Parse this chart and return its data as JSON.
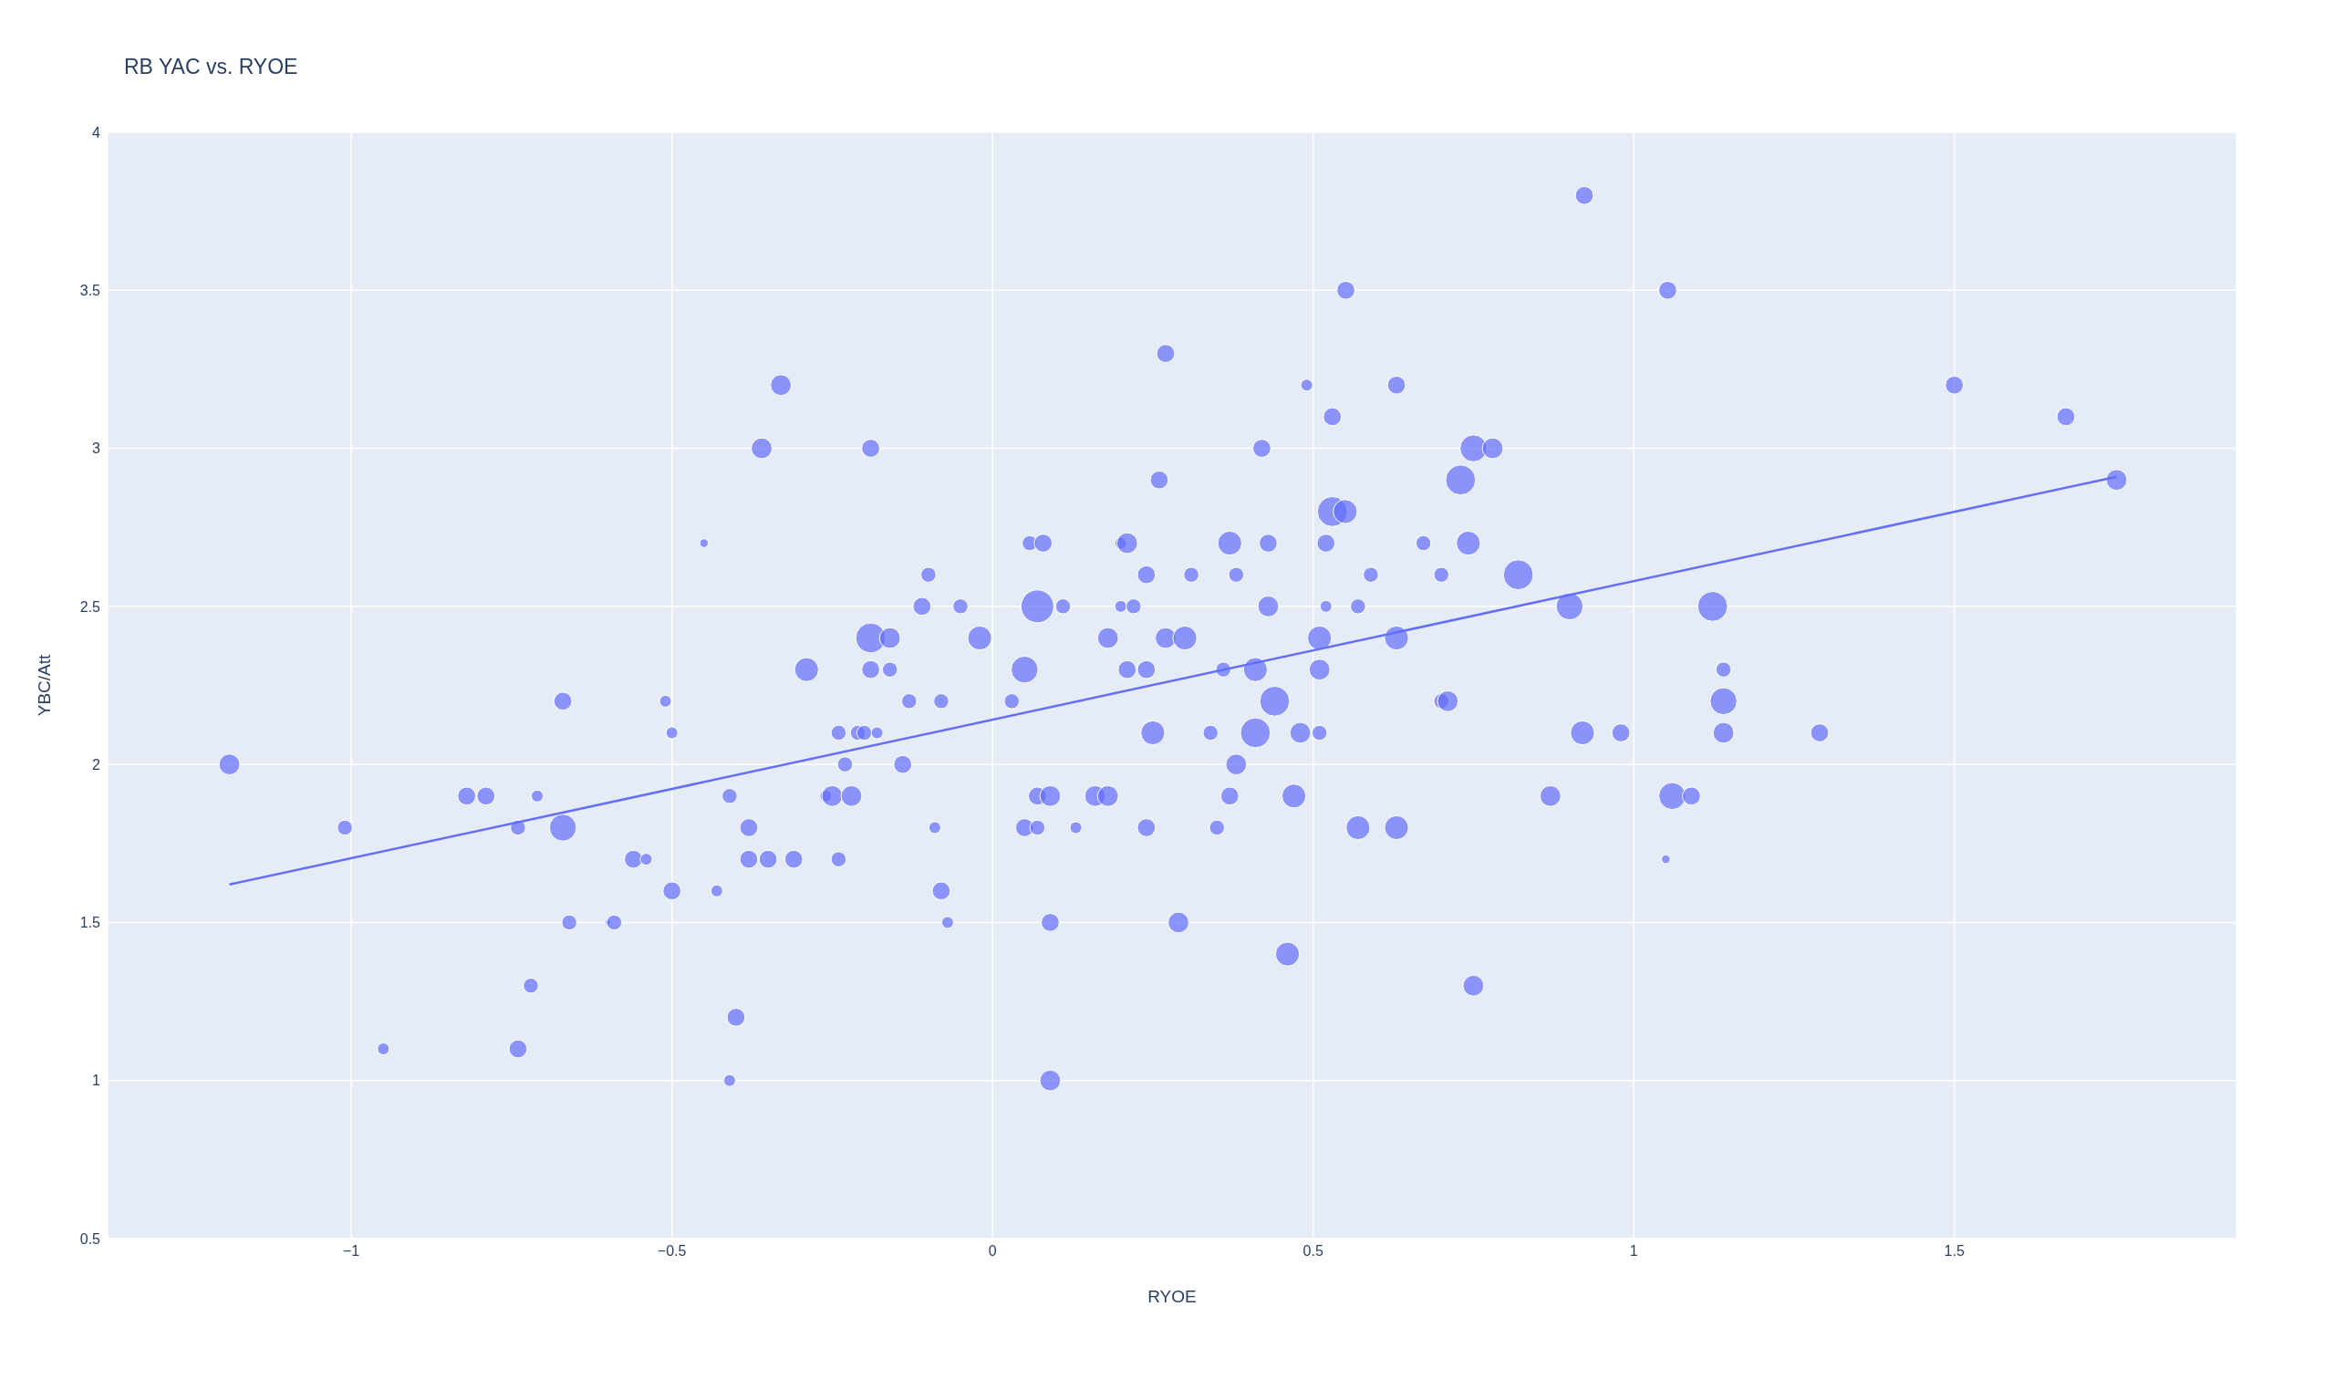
{
  "chart_data": {
    "type": "bubble",
    "title": "RB YAC vs. RYOE",
    "xlabel": "RYOE",
    "ylabel": "YBC/Att",
    "grid": true,
    "xlim": [
      -1.38,
      1.94
    ],
    "ylim": [
      0.5,
      4
    ],
    "xticks": [
      {
        "value": -1,
        "label": "−1"
      },
      {
        "value": -0.5,
        "label": "−0.5"
      },
      0,
      0.5,
      1,
      1.5
    ],
    "yticks": [
      0.5,
      1,
      1.5,
      2,
      2.5,
      3,
      3.5,
      4
    ],
    "series": [
      {
        "type": "bubble",
        "color": "#636efa",
        "x": [
          0.923,
          1.053,
          0.551,
          0.27,
          -0.33,
          0.49,
          0.63,
          1.5,
          0.53,
          1.674,
          -0.36,
          -0.19,
          0.42,
          0.75,
          0.78,
          1.753,
          0.26,
          0.73,
          0.53,
          0.55,
          -0.45,
          0.058,
          0.079,
          0.2,
          0.21,
          0.37,
          0.43,
          0.52,
          0.672,
          0.742,
          -0.1,
          0.24,
          0.31,
          0.38,
          0.59,
          0.7,
          0.82,
          -0.11,
          -0.05,
          0.07,
          0.11,
          0.2,
          0.22,
          0.43,
          0.52,
          0.57,
          0.9,
          1.123,
          -0.19,
          -0.16,
          -0.02,
          0.18,
          0.27,
          0.3,
          0.51,
          0.63,
          -0.29,
          -0.19,
          -0.16,
          0.05,
          0.21,
          0.24,
          0.36,
          0.41,
          0.51,
          1.14,
          -0.67,
          -0.51,
          -0.13,
          -0.08,
          0.03,
          0.44,
          0.7,
          0.71,
          1.14,
          -0.5,
          -0.24,
          -0.21,
          -0.2,
          -0.18,
          0.25,
          0.34,
          0.41,
          0.48,
          0.51,
          0.92,
          0.98,
          1.14,
          1.29,
          -1.19,
          -0.23,
          -0.14,
          0.38,
          -0.82,
          -0.79,
          -0.71,
          -0.41,
          -0.26,
          -0.25,
          -0.22,
          0.07,
          0.09,
          0.16,
          0.18,
          0.37,
          0.47,
          0.87,
          1.06,
          1.09,
          -1.01,
          -0.74,
          -0.67,
          -0.38,
          -0.09,
          0.05,
          0.07,
          0.13,
          0.24,
          0.35,
          0.57,
          0.63,
          -0.56,
          -0.54,
          -0.38,
          -0.35,
          -0.31,
          -0.24,
          1.05,
          -0.5,
          -0.43,
          -0.08,
          -0.66,
          -0.6,
          -0.59,
          -0.07,
          0.09,
          0.29,
          0.46,
          -0.72,
          0.75,
          -0.4,
          -0.95,
          -0.74,
          -0.41,
          0.09
        ],
        "values": [
          3.8,
          3.5,
          3.5,
          3.3,
          3.2,
          3.2,
          3.2,
          3.2,
          3.1,
          3.1,
          3.0,
          3.0,
          3.0,
          3.0,
          3.0,
          2.9,
          2.9,
          2.9,
          2.8,
          2.8,
          2.7,
          2.7,
          2.7,
          2.7,
          2.7,
          2.7,
          2.7,
          2.7,
          2.7,
          2.7,
          2.6,
          2.6,
          2.6,
          2.6,
          2.6,
          2.6,
          2.6,
          2.5,
          2.5,
          2.5,
          2.5,
          2.5,
          2.5,
          2.5,
          2.5,
          2.5,
          2.5,
          2.5,
          2.4,
          2.4,
          2.4,
          2.4,
          2.4,
          2.4,
          2.4,
          2.4,
          2.3,
          2.3,
          2.3,
          2.3,
          2.3,
          2.3,
          2.3,
          2.3,
          2.3,
          2.3,
          2.2,
          2.2,
          2.2,
          2.2,
          2.2,
          2.2,
          2.2,
          2.2,
          2.2,
          2.1,
          2.1,
          2.1,
          2.1,
          2.1,
          2.1,
          2.1,
          2.1,
          2.1,
          2.1,
          2.1,
          2.1,
          2.1,
          2.1,
          2.0,
          2.0,
          2.0,
          2.0,
          1.9,
          1.9,
          1.9,
          1.9,
          1.9,
          1.9,
          1.9,
          1.9,
          1.9,
          1.9,
          1.9,
          1.9,
          1.9,
          1.9,
          1.9,
          1.9,
          1.8,
          1.8,
          1.8,
          1.8,
          1.8,
          1.8,
          1.8,
          1.8,
          1.8,
          1.8,
          1.8,
          1.8,
          1.7,
          1.7,
          1.7,
          1.7,
          1.7,
          1.7,
          1.7,
          1.6,
          1.6,
          1.6,
          1.5,
          1.5,
          1.5,
          1.5,
          1.5,
          1.5,
          1.4,
          1.3,
          1.3,
          1.2,
          1.1,
          1.1,
          1.0,
          1.0
        ],
        "sizes": [
          0.3,
          0.3,
          0.3,
          0.3,
          0.4,
          0.13,
          0.3,
          0.3,
          0.3,
          0.3,
          0.4,
          0.3,
          0.3,
          0.67,
          0.4,
          0.4,
          0.3,
          0.83,
          0.83,
          0.53,
          0.07,
          0.21,
          0.3,
          0.13,
          0.4,
          0.53,
          0.3,
          0.3,
          0.21,
          0.53,
          0.21,
          0.3,
          0.21,
          0.21,
          0.21,
          0.21,
          0.83,
          0.3,
          0.21,
          1,
          0.21,
          0.13,
          0.21,
          0.4,
          0.13,
          0.21,
          0.67,
          0.83,
          0.83,
          0.4,
          0.53,
          0.4,
          0.4,
          0.53,
          0.53,
          0.53,
          0.53,
          0.3,
          0.21,
          0.67,
          0.3,
          0.3,
          0.21,
          0.53,
          0.4,
          0.21,
          0.3,
          0.13,
          0.21,
          0.21,
          0.21,
          0.83,
          0.21,
          0.4,
          0.67,
          0.13,
          0.21,
          0.21,
          0.21,
          0.13,
          0.53,
          0.21,
          0.83,
          0.4,
          0.21,
          0.53,
          0.3,
          0.4,
          0.3,
          0.4,
          0.21,
          0.3,
          0.4,
          0.3,
          0.3,
          0.13,
          0.21,
          0.13,
          0.4,
          0.4,
          0.3,
          0.4,
          0.4,
          0.4,
          0.3,
          0.53,
          0.4,
          0.67,
          0.3,
          0.21,
          0.21,
          0.67,
          0.3,
          0.13,
          0.3,
          0.21,
          0.13,
          0.3,
          0.21,
          0.53,
          0.53,
          0.3,
          0.13,
          0.3,
          0.3,
          0.3,
          0.21,
          0.07,
          0.3,
          0.13,
          0.3,
          0.21,
          0.03,
          0.21,
          0.13,
          0.3,
          0.4,
          0.53,
          0.21,
          0.4,
          0.3,
          0.13,
          0.3,
          0.13,
          0.4
        ]
      },
      {
        "type": "line",
        "color": "#636efa",
        "x": [
          -1.19,
          1.753
        ],
        "values": [
          1.62,
          2.91
        ]
      }
    ]
  }
}
